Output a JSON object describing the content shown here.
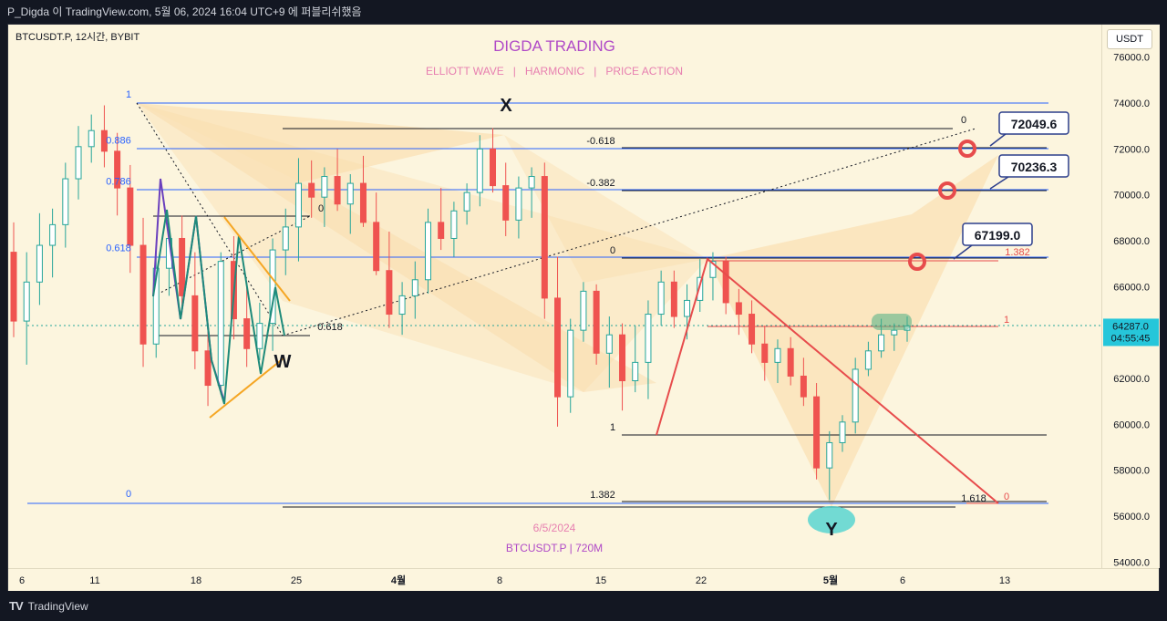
{
  "window": {
    "title": "P_Digda 이 TradingView.com, 5월 06, 2024 16:04 UTC+9 에 퍼블리쉬했음",
    "footer_logo": "TradingView"
  },
  "chart_header": {
    "symbol": "BTCUSDT.P, 12시간, BYBIT",
    "brand": "DIGDA TRADING",
    "tagline": "ELLIOTT WAVE   |   HARMONIC   |   PRICE ACTION",
    "watermark_date": "6/5/2024",
    "watermark_symbol": "BTCUSDT.P | 720M",
    "currency_button": "USDT"
  },
  "colors": {
    "background": "#fcf5de",
    "bull_candle": "#26a69a",
    "bear_candle": "#ef5350",
    "harmonic_fill": "#f9d9a6",
    "fib_blue": "#2962ff",
    "accent_red": "#e74c4c",
    "elliott_purple": "#6a3fbd",
    "elliott_teal": "#1e8a7a",
    "wedge_orange": "#f5a623",
    "brand_purple": "#b04ac7",
    "tagline_pink": "#e77fb0",
    "callout_border": "#2c3e8c",
    "last_price_bg": "#26c6da"
  },
  "chart_data": {
    "type": "candlestick",
    "symbol": "BTCUSDT.P",
    "timeframe": "12시간",
    "exchange": "BYBIT",
    "currency": "USDT",
    "ylim": [
      53500,
      77000
    ],
    "y_ticks": [
      "76000.0",
      "74000.0",
      "72000.0",
      "70000.0",
      "68000.0",
      "66000.0",
      "64000.0",
      "62000.0",
      "60000.0",
      "58000.0",
      "56000.0",
      "54000.0"
    ],
    "x_ticks": [
      "6",
      "11",
      "18",
      "25",
      "4월",
      "8",
      "15",
      "22",
      "5월",
      "6",
      "13"
    ],
    "last_price": {
      "value": "64287.0",
      "countdown": "04:55:45"
    },
    "candles": [
      [
        67500,
        68800,
        63800,
        64500
      ],
      [
        64500,
        67500,
        62600,
        66200
      ],
      [
        66200,
        69200,
        65200,
        67800
      ],
      [
        67800,
        69400,
        66400,
        68700
      ],
      [
        68700,
        71400,
        67700,
        70700
      ],
      [
        70700,
        73000,
        69800,
        72100
      ],
      [
        72100,
        73500,
        71400,
        72800
      ],
      [
        72800,
        73900,
        71200,
        71900
      ],
      [
        71900,
        72700,
        69100,
        70300
      ],
      [
        70300,
        71300,
        66600,
        67800
      ],
      [
        67800,
        69000,
        62500,
        63500
      ],
      [
        63500,
        67700,
        62900,
        66800
      ],
      [
        66800,
        68700,
        65600,
        68100
      ],
      [
        68100,
        69100,
        64800,
        65600
      ],
      [
        65600,
        67500,
        62400,
        63200
      ],
      [
        63200,
        64200,
        60800,
        61700
      ],
      [
        61700,
        67500,
        61300,
        67100
      ],
      [
        67100,
        68200,
        63700,
        64600
      ],
      [
        64600,
        66200,
        62500,
        63300
      ],
      [
        63300,
        65300,
        62800,
        64400
      ],
      [
        64400,
        68100,
        63200,
        67600
      ],
      [
        67600,
        69400,
        66500,
        68600
      ],
      [
        68600,
        71600,
        67100,
        70500
      ],
      [
        70500,
        71500,
        69000,
        69900
      ],
      [
        69900,
        71200,
        68600,
        70800
      ],
      [
        70800,
        72000,
        69300,
        69600
      ],
      [
        69600,
        70900,
        68300,
        70500
      ],
      [
        70500,
        71700,
        68600,
        68800
      ],
      [
        68800,
        70100,
        66500,
        66700
      ],
      [
        66700,
        68400,
        64200,
        64800
      ],
      [
        64800,
        66200,
        63900,
        65600
      ],
      [
        65600,
        67100,
        64600,
        66300
      ],
      [
        66300,
        69400,
        65700,
        68800
      ],
      [
        68800,
        70300,
        67600,
        68100
      ],
      [
        68100,
        69700,
        67300,
        69300
      ],
      [
        69300,
        70500,
        68700,
        70100
      ],
      [
        70100,
        72600,
        69500,
        72000
      ],
      [
        72000,
        72900,
        70100,
        70400
      ],
      [
        70400,
        71400,
        68200,
        68900
      ],
      [
        68900,
        70800,
        68100,
        70300
      ],
      [
        70300,
        71200,
        69000,
        70800
      ],
      [
        70800,
        71400,
        64600,
        65500
      ],
      [
        65500,
        67300,
        59900,
        61200
      ],
      [
        61200,
        64600,
        60500,
        64100
      ],
      [
        64100,
        66200,
        63600,
        65800
      ],
      [
        65800,
        66100,
        62600,
        63100
      ],
      [
        63100,
        64700,
        61600,
        63900
      ],
      [
        63900,
        64400,
        60600,
        61900
      ],
      [
        61900,
        64300,
        61400,
        62700
      ],
      [
        62700,
        65400,
        61100,
        64800
      ],
      [
        64800,
        66700,
        64300,
        66200
      ],
      [
        66200,
        66700,
        64200,
        64700
      ],
      [
        64700,
        66100,
        63700,
        65400
      ],
      [
        65400,
        67200,
        64900,
        66400
      ],
      [
        66400,
        67500,
        65400,
        67100
      ],
      [
        67100,
        67300,
        64800,
        65300
      ],
      [
        65300,
        65900,
        63900,
        64800
      ],
      [
        64800,
        65400,
        63100,
        63500
      ],
      [
        63500,
        64300,
        61900,
        62700
      ],
      [
        62700,
        63700,
        61800,
        63300
      ],
      [
        63300,
        63800,
        61700,
        62100
      ],
      [
        62100,
        62900,
        60800,
        61200
      ],
      [
        61200,
        61800,
        57600,
        58100
      ],
      [
        58100,
        59700,
        56700,
        59200
      ],
      [
        59200,
        60400,
        58800,
        60100
      ],
      [
        60100,
        62900,
        59600,
        62400
      ],
      [
        62400,
        63600,
        62100,
        63200
      ],
      [
        63200,
        64600,
        62900,
        63900
      ],
      [
        63900,
        64400,
        63200,
        64100
      ],
      [
        64100,
        64700,
        63600,
        64287
      ]
    ],
    "fib_levels_blue": [
      {
        "label": "1",
        "price": 74000
      },
      {
        "label": "0.886",
        "price": 72000
      },
      {
        "label": "0.786",
        "price": 70200
      },
      {
        "label": "0.618",
        "price": 67300
      },
      {
        "label": "0",
        "price": 56600
      }
    ],
    "fib_ratio_labels": [
      "0",
      "-0.618",
      "-0.382",
      "0",
      "0.618",
      "0",
      "1",
      "1.382",
      "1.618",
      "0",
      "1",
      "1.382"
    ],
    "callouts": [
      "72049.6",
      "70236.3",
      "67199.0"
    ],
    "wave_labels": [
      "X",
      "W",
      "Y"
    ],
    "grid": false,
    "legend": "none"
  }
}
